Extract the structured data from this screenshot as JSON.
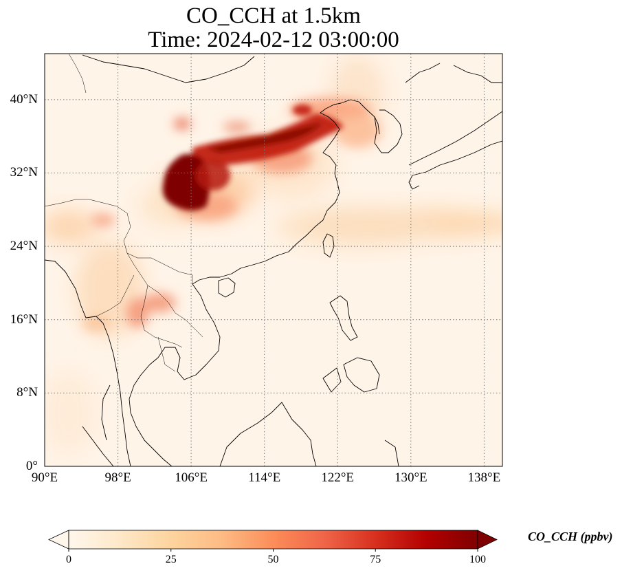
{
  "title": {
    "line1": "CO_CCH at 1.5km",
    "line2": "Time: 2024-02-12 03:00:00"
  },
  "map": {
    "projection": "PlateCarree",
    "lon_range": [
      90,
      140
    ],
    "lat_range": [
      0,
      44
    ],
    "gridlines": "dotted grey",
    "coastlines": true,
    "borders": true,
    "lon_ticks": [
      "90°E",
      "98°E",
      "106°E",
      "114°E",
      "122°E",
      "130°E",
      "138°E"
    ],
    "lat_ticks": [
      "0°",
      "8°N",
      "16°N",
      "24°N",
      "32°N",
      "40°N"
    ],
    "variable": "CO_CCH",
    "field_regions": [
      {
        "region": "Sichuan Basin",
        "level": "100+"
      },
      {
        "region": "North China Plain band",
        "level": "75-100"
      },
      {
        "region": "Northeast China / Korea",
        "level": "40-60"
      },
      {
        "region": "Western Pacific plume near 28°N",
        "level": "25-40"
      },
      {
        "region": "Northern Thailand / Laos",
        "level": "30-50"
      },
      {
        "region": "Open ocean",
        "level": "0-10"
      }
    ]
  },
  "colorbar": {
    "colormap": "OrRd",
    "ticks": [
      "0",
      "25",
      "50",
      "75",
      "100"
    ],
    "min": 0,
    "max": 100,
    "extend": "both",
    "label": "CO_CCH (ppbv)",
    "colors": [
      "#fff7ec",
      "#fee8c8",
      "#fdd49e",
      "#fdbb84",
      "#fc8d59",
      "#ef6548",
      "#d7301f",
      "#b30000",
      "#7f0000"
    ]
  }
}
